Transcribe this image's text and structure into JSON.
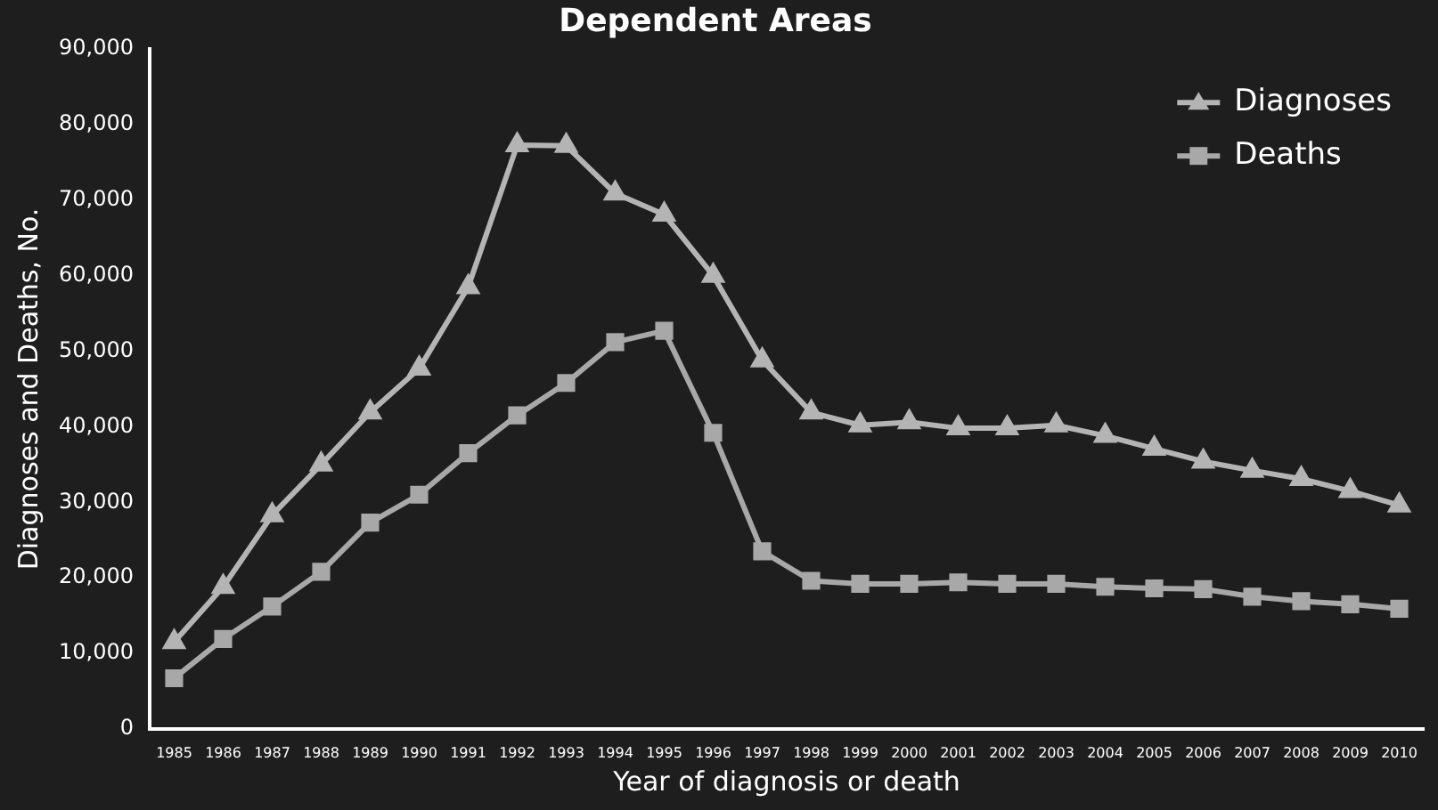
{
  "chart_data": {
    "type": "line",
    "title": "Dependent Areas",
    "xlabel": "Year of diagnosis or death",
    "ylabel": "Diagnoses and Deaths, No.",
    "categories": [
      "1985",
      "1986",
      "1987",
      "1988",
      "1989",
      "1990",
      "1991",
      "1992",
      "1993",
      "1994",
      "1995",
      "1996",
      "1997",
      "1998",
      "1999",
      "2000",
      "2001",
      "2002",
      "2003",
      "2004",
      "2005",
      "2006",
      "2007",
      "2008",
      "2009",
      "2010"
    ],
    "series": [
      {
        "name": "Diagnoses",
        "color": "#b4b4b4",
        "marker": "triangle",
        "values": [
          11500,
          18800,
          28300,
          35000,
          41900,
          47700,
          58500,
          77300,
          77200,
          70900,
          68100,
          60000,
          48800,
          41900,
          40200,
          40600,
          39800,
          39800,
          40200,
          38800,
          37100,
          35400,
          34200,
          33100,
          31500,
          29600
        ]
      },
      {
        "name": "Deaths",
        "color": "#a8a8a8",
        "marker": "square",
        "values": [
          6700,
          11900,
          16200,
          20800,
          27300,
          31000,
          36500,
          41500,
          45800,
          51200,
          52700,
          39200,
          23500,
          19600,
          19200,
          19200,
          19400,
          19200,
          19200,
          18800,
          18600,
          18500,
          17500,
          16900,
          16500,
          15900
        ]
      }
    ],
    "ylim": [
      0,
      90000
    ],
    "yticks": [
      0,
      {
        "value": 10000,
        "label": "10,000"
      },
      {
        "value": 20000,
        "label": "20,000"
      },
      {
        "value": 30000,
        "label": "30,000"
      },
      {
        "value": 40000,
        "label": "40,000"
      },
      {
        "value": 50000,
        "label": "50,000"
      },
      {
        "value": 60000,
        "label": "60,000"
      },
      {
        "value": 70000,
        "label": "70,000"
      },
      {
        "value": 80000,
        "label": "80,000"
      },
      {
        "value": 90000,
        "label": "90,000"
      }
    ],
    "grid": false,
    "legend": "top right",
    "line_style": "solid"
  }
}
